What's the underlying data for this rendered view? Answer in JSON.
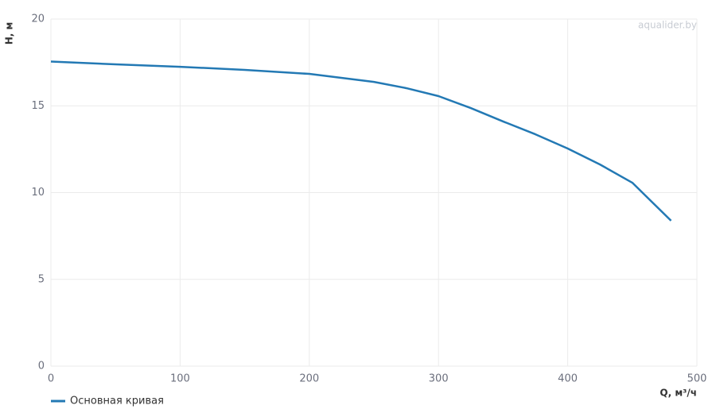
{
  "chart_data": {
    "type": "line",
    "watermark": "aqualider.by",
    "x_label": "Q, м³/ч",
    "y_label": "H, м",
    "x": [
      0,
      50,
      100,
      150,
      200,
      250,
      275,
      300,
      325,
      350,
      375,
      400,
      425,
      450,
      480
    ],
    "series": [
      {
        "name": "Основная кривая",
        "color": "#2379b4",
        "values": [
          17.55,
          17.39,
          17.25,
          17.07,
          16.84,
          16.38,
          16.02,
          15.56,
          14.87,
          14.1,
          13.36,
          12.54,
          11.62,
          10.57,
          8.38
        ]
      }
    ],
    "xlim": [
      0,
      500
    ],
    "xticks": [
      0,
      100,
      200,
      300,
      400,
      500
    ],
    "ylim": [
      0,
      20
    ],
    "yticks": [
      0,
      5,
      10,
      15,
      20
    ],
    "grid": true,
    "legend": "bottom-left"
  }
}
